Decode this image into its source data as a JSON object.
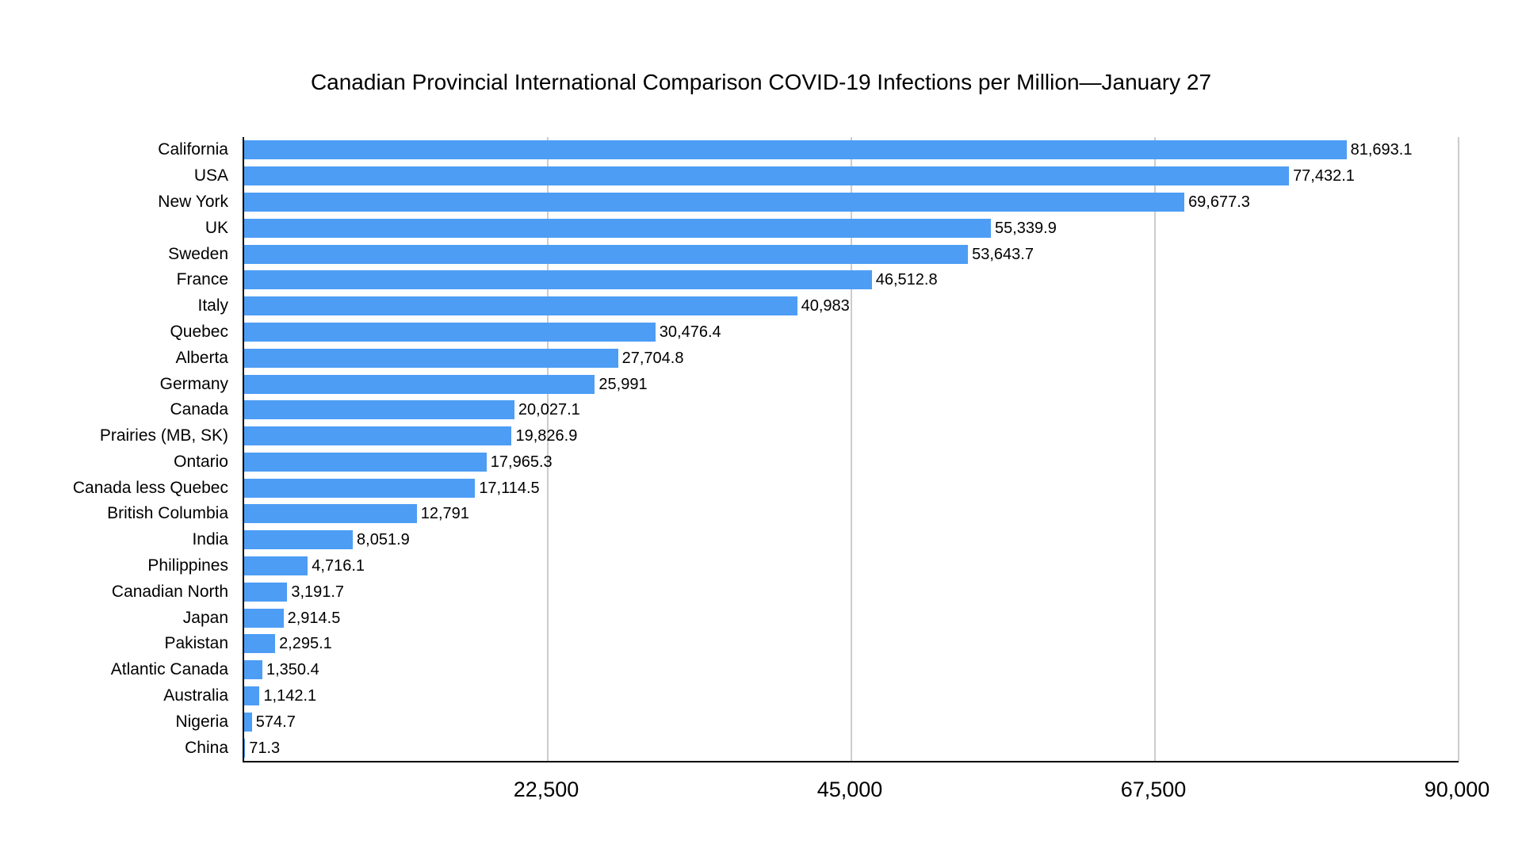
{
  "title": "Canadian Provincial International Comparison COVID-19 Infections per Million—January 27",
  "colors": {
    "bar": "#4D9DF5",
    "gridline": "#cccccc",
    "axis": "#000000",
    "background": "#ffffff",
    "text": "#000000"
  },
  "chart_data": {
    "type": "bar",
    "orientation": "horizontal",
    "title": "Canadian Provincial International Comparison COVID-19 Infections per Million—January 27",
    "xlabel": "",
    "ylabel": "",
    "xlim": [
      0,
      90000
    ],
    "grid": true,
    "legend": false,
    "x_ticks": [
      22500,
      45000,
      67500,
      90000
    ],
    "x_tick_labels": [
      "22,500",
      "45,000",
      "67,500",
      "90,000"
    ],
    "categories": [
      "California",
      "USA",
      "New York",
      "UK",
      "Sweden",
      "France",
      "Italy",
      "Quebec",
      "Alberta",
      "Germany",
      "Canada",
      "Prairies (MB, SK)",
      "Ontario",
      "Canada less Quebec",
      "British Columbia",
      "India",
      "Philippines",
      "Canadian North",
      "Japan",
      "Pakistan",
      "Atlantic Canada",
      "Australia",
      "Nigeria",
      "China"
    ],
    "values": [
      81693.1,
      77432.1,
      69677.3,
      55339.9,
      53643.7,
      46512.8,
      40983,
      30476.4,
      27704.8,
      25991,
      20027.1,
      19826.9,
      17965.3,
      17114.5,
      12791,
      8051.9,
      4716.1,
      3191.7,
      2914.5,
      2295.1,
      1350.4,
      1142.1,
      574.7,
      71.3
    ],
    "value_labels": [
      "81,693.1",
      "77,432.1",
      "69,677.3",
      "55,339.9",
      "53,643.7",
      "46,512.8",
      "40,983",
      "30,476.4",
      "27,704.8",
      "25,991",
      "20,027.1",
      "19,826.9",
      "17,965.3",
      "17,114.5",
      "12,791",
      "8,051.9",
      "4,716.1",
      "3,191.7",
      "2,914.5",
      "2,295.1",
      "1,350.4",
      "1,142.1",
      "574.7",
      "71.3"
    ]
  }
}
